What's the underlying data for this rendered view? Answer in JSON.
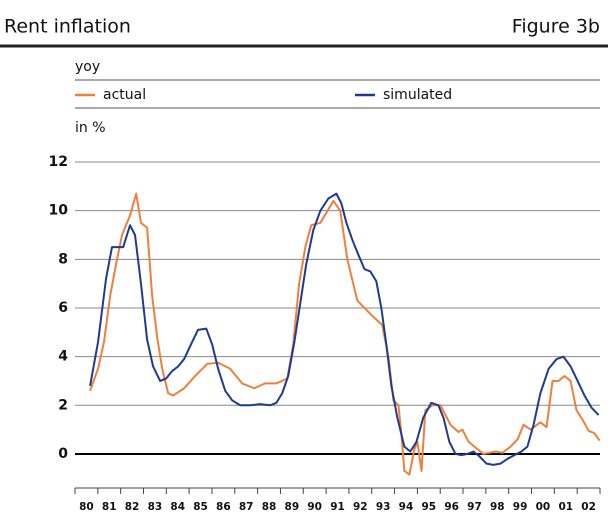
{
  "chart_data": {
    "type": "line",
    "title": "Rent inflation",
    "figure_label": "Figure 3b",
    "subtitle": "yoy",
    "ylabel": "in %",
    "xlim": [
      1980,
      2003
    ],
    "ylim": [
      -1.4,
      12
    ],
    "yticks": [
      0,
      2,
      4,
      6,
      8,
      10,
      12
    ],
    "xticks": [
      {
        "value": 1980.5,
        "label": "80"
      },
      {
        "value": 1981.5,
        "label": "81"
      },
      {
        "value": 1982.5,
        "label": "82"
      },
      {
        "value": 1983.5,
        "label": "83"
      },
      {
        "value": 1984.5,
        "label": "84"
      },
      {
        "value": 1985.5,
        "label": "85"
      },
      {
        "value": 1986.5,
        "label": "86"
      },
      {
        "value": 1987.5,
        "label": "87"
      },
      {
        "value": 1988.5,
        "label": "88"
      },
      {
        "value": 1989.5,
        "label": "89"
      },
      {
        "value": 1990.5,
        "label": "90"
      },
      {
        "value": 1991.5,
        "label": "91"
      },
      {
        "value": 1992.5,
        "label": "92"
      },
      {
        "value": 1993.5,
        "label": "93"
      },
      {
        "value": 1994.5,
        "label": "94"
      },
      {
        "value": 1995.5,
        "label": "95"
      },
      {
        "value": 1996.5,
        "label": "96"
      },
      {
        "value": 1997.5,
        "label": "97"
      },
      {
        "value": 1998.5,
        "label": "98"
      },
      {
        "value": 1999.5,
        "label": "99"
      },
      {
        "value": 2000.5,
        "label": "00"
      },
      {
        "value": 2001.5,
        "label": "01"
      },
      {
        "value": 2002.5,
        "label": "02"
      }
    ],
    "grid": true,
    "series": [
      {
        "name": "actual",
        "color": "#f07f3c",
        "x": [
          1980.66,
          1981.01,
          1981.27,
          1981.54,
          1981.8,
          1982.06,
          1982.41,
          1982.68,
          1982.89,
          1983.16,
          1983.38,
          1983.6,
          1983.82,
          1984.08,
          1984.3,
          1984.78,
          1985.26,
          1985.79,
          1986.27,
          1986.8,
          1987.32,
          1987.85,
          1988.33,
          1988.82,
          1989.3,
          1989.56,
          1989.82,
          1990.09,
          1990.35,
          1990.75,
          1991.32,
          1991.62,
          1991.93,
          1992.37,
          1992.68,
          1993.11,
          1993.46,
          1993.73,
          1993.95,
          1994.17,
          1994.3,
          1994.43,
          1994.65,
          1994.87,
          1995.0,
          1995.18,
          1995.35,
          1995.66,
          1996.01,
          1996.45,
          1996.8,
          1996.97,
          1997.24,
          1997.5,
          1997.89,
          1998.42,
          1998.73,
          1999.08,
          1999.39,
          1999.65,
          1999.96,
          2000.39,
          2000.66,
          2000.92,
          2001.18,
          2001.45,
          2001.71,
          2001.97,
          2002.24,
          2002.5,
          2002.76,
          2002.98
        ],
        "values": [
          2.6,
          3.5,
          4.6,
          6.5,
          7.8,
          9.0,
          9.8,
          10.7,
          9.5,
          9.3,
          6.5,
          4.8,
          3.5,
          2.5,
          2.4,
          2.7,
          3.2,
          3.7,
          3.75,
          3.5,
          2.9,
          2.7,
          2.9,
          2.9,
          3.1,
          4.5,
          7.0,
          8.5,
          9.4,
          9.5,
          10.4,
          10.0,
          8.0,
          6.3,
          6.0,
          5.6,
          5.3,
          4.0,
          2.2,
          2.0,
          0.8,
          -0.7,
          -0.85,
          0.2,
          0.5,
          -0.7,
          1.8,
          2.0,
          2.0,
          1.2,
          0.9,
          1.0,
          0.5,
          0.3,
          0,
          0.1,
          0.05,
          0.3,
          0.6,
          1.2,
          1.0,
          1.3,
          1.1,
          3.0,
          3.0,
          3.2,
          3.0,
          1.8,
          1.4,
          0.95,
          0.85,
          0.55
        ]
      },
      {
        "name": "simulated",
        "color": "#1f3a93",
        "x": [
          1980.66,
          1981.01,
          1981.36,
          1981.62,
          1982.11,
          1982.41,
          1982.63,
          1982.89,
          1983.16,
          1983.42,
          1983.73,
          1983.99,
          1984.25,
          1984.52,
          1984.78,
          1985.13,
          1985.39,
          1985.75,
          1986.01,
          1986.27,
          1986.58,
          1986.89,
          1987.24,
          1987.68,
          1988.11,
          1988.55,
          1988.82,
          1989.08,
          1989.34,
          1989.61,
          1989.87,
          1990.13,
          1990.44,
          1990.75,
          1991.1,
          1991.45,
          1991.67,
          1991.89,
          1992.15,
          1992.41,
          1992.68,
          1992.94,
          1993.2,
          1993.42,
          1993.64,
          1993.86,
          1994.12,
          1994.43,
          1994.69,
          1994.96,
          1995.26,
          1995.61,
          1995.92,
          1996.14,
          1996.4,
          1996.67,
          1996.93,
          1997.19,
          1997.46,
          1997.72,
          1998.03,
          1998.33,
          1998.64,
          1998.95,
          1999.25,
          1999.56,
          1999.82,
          2000.09,
          2000.39,
          2000.75,
          2001.1,
          2001.4,
          2001.71,
          2002.02,
          2002.32,
          2002.63,
          2002.94
        ],
        "values": [
          2.8,
          4.6,
          7.2,
          8.5,
          8.5,
          9.4,
          9.0,
          7.0,
          4.7,
          3.6,
          3.0,
          3.1,
          3.4,
          3.6,
          3.9,
          4.6,
          5.1,
          5.15,
          4.5,
          3.5,
          2.6,
          2.2,
          2.0,
          2.0,
          2.05,
          2.0,
          2.1,
          2.5,
          3.2,
          4.6,
          6.2,
          7.8,
          9.2,
          10.0,
          10.5,
          10.7,
          10.3,
          9.5,
          8.8,
          8.2,
          7.6,
          7.5,
          7.1,
          6.0,
          4.5,
          2.8,
          1.5,
          0.3,
          0.1,
          0.5,
          1.5,
          2.1,
          2.0,
          1.5,
          0.5,
          0,
          -0.05,
          0.0,
          0.1,
          -0.1,
          -0.4,
          -0.45,
          -0.4,
          -0.2,
          -0.05,
          0.1,
          0.3,
          1.2,
          2.5,
          3.5,
          3.9,
          4.0,
          3.6,
          3.0,
          2.4,
          1.9,
          1.6
        ]
      }
    ]
  }
}
